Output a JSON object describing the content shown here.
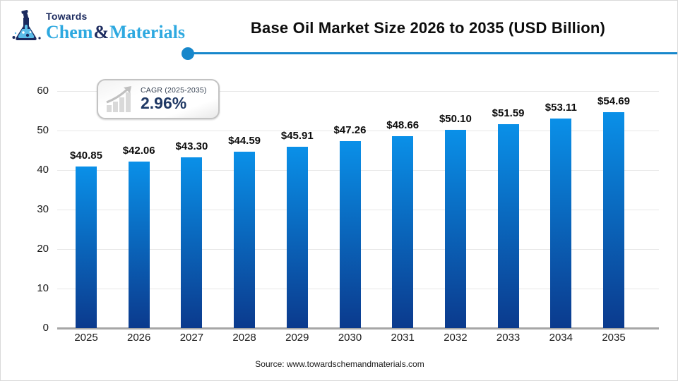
{
  "header": {
    "logo": {
      "line1": "Towards",
      "chem": "Chem",
      "amp": "&",
      "materials": "Materials"
    },
    "title": "Base Oil Market Size 2026 to 2035 (USD Billion)"
  },
  "badge": {
    "label": "CAGR (2025-2035)",
    "value": "2.96%"
  },
  "footer": {
    "source": "Source: www.towardschemandmaterials.com"
  },
  "colors": {
    "accent_blue": "#1787cb",
    "logo_light_blue": "#2ea9e0",
    "logo_navy": "#1b2a5e",
    "bar_top": "#0a90e8",
    "bar_bottom": "#0b3a8d",
    "badge_navy": "#1f3864",
    "gridline": "#e7e7e7",
    "baseline": "#a6a6a6"
  },
  "chart_data": {
    "type": "bar",
    "title": "Base Oil Market Size 2026 to 2035 (USD Billion)",
    "categories": [
      "2025",
      "2026",
      "2027",
      "2028",
      "2029",
      "2030",
      "2031",
      "2032",
      "2033",
      "2034",
      "2035"
    ],
    "values": [
      40.85,
      42.06,
      43.3,
      44.59,
      45.91,
      47.26,
      48.66,
      50.1,
      51.59,
      53.11,
      54.69
    ],
    "value_labels": [
      "$40.85",
      "$42.06",
      "$43.30",
      "$44.59",
      "$45.91",
      "$47.26",
      "$48.66",
      "$50.10",
      "$51.59",
      "$53.11",
      "$54.69"
    ],
    "xlabel": "",
    "ylabel": "",
    "ylim": [
      0,
      60
    ],
    "yticks": [
      0,
      10,
      20,
      30,
      40,
      50,
      60
    ],
    "grid": true,
    "legend": false,
    "annotation": "CAGR (2025-2035) 2.96%"
  }
}
